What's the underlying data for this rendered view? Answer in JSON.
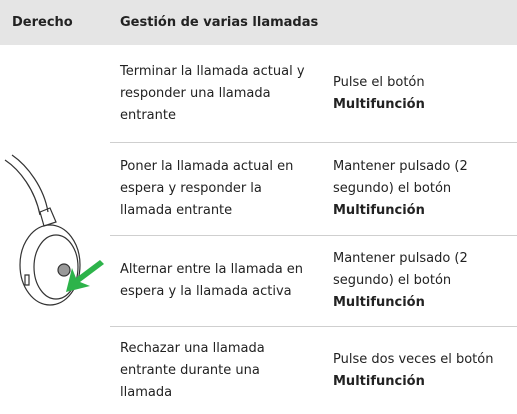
{
  "header": {
    "side": "Derecho",
    "title": "Gestión de varias llamadas"
  },
  "table": {
    "rows": [
      [
        "Terminar la llamada actual y responder una llamada entrante",
        {
          "text": "Pulse el botón",
          "bold": "Multifunción"
        }
      ],
      [
        "Poner la llamada actual en espera y responder la llamada entrante",
        {
          "text": "Mantener pulsado (2 segundo) el botón",
          "bold": "Multifunción"
        }
      ],
      [
        "Alternar entre la llamada en espera y la llamada activa",
        {
          "text": "Mantener pulsado (2 segundo) el botón",
          "bold": "Multifunción"
        }
      ],
      [
        "Rechazar una llamada entrante durante una llamada",
        {
          "text": "Pulse dos veces el botón",
          "bold": "Multifunción"
        }
      ]
    ]
  }
}
